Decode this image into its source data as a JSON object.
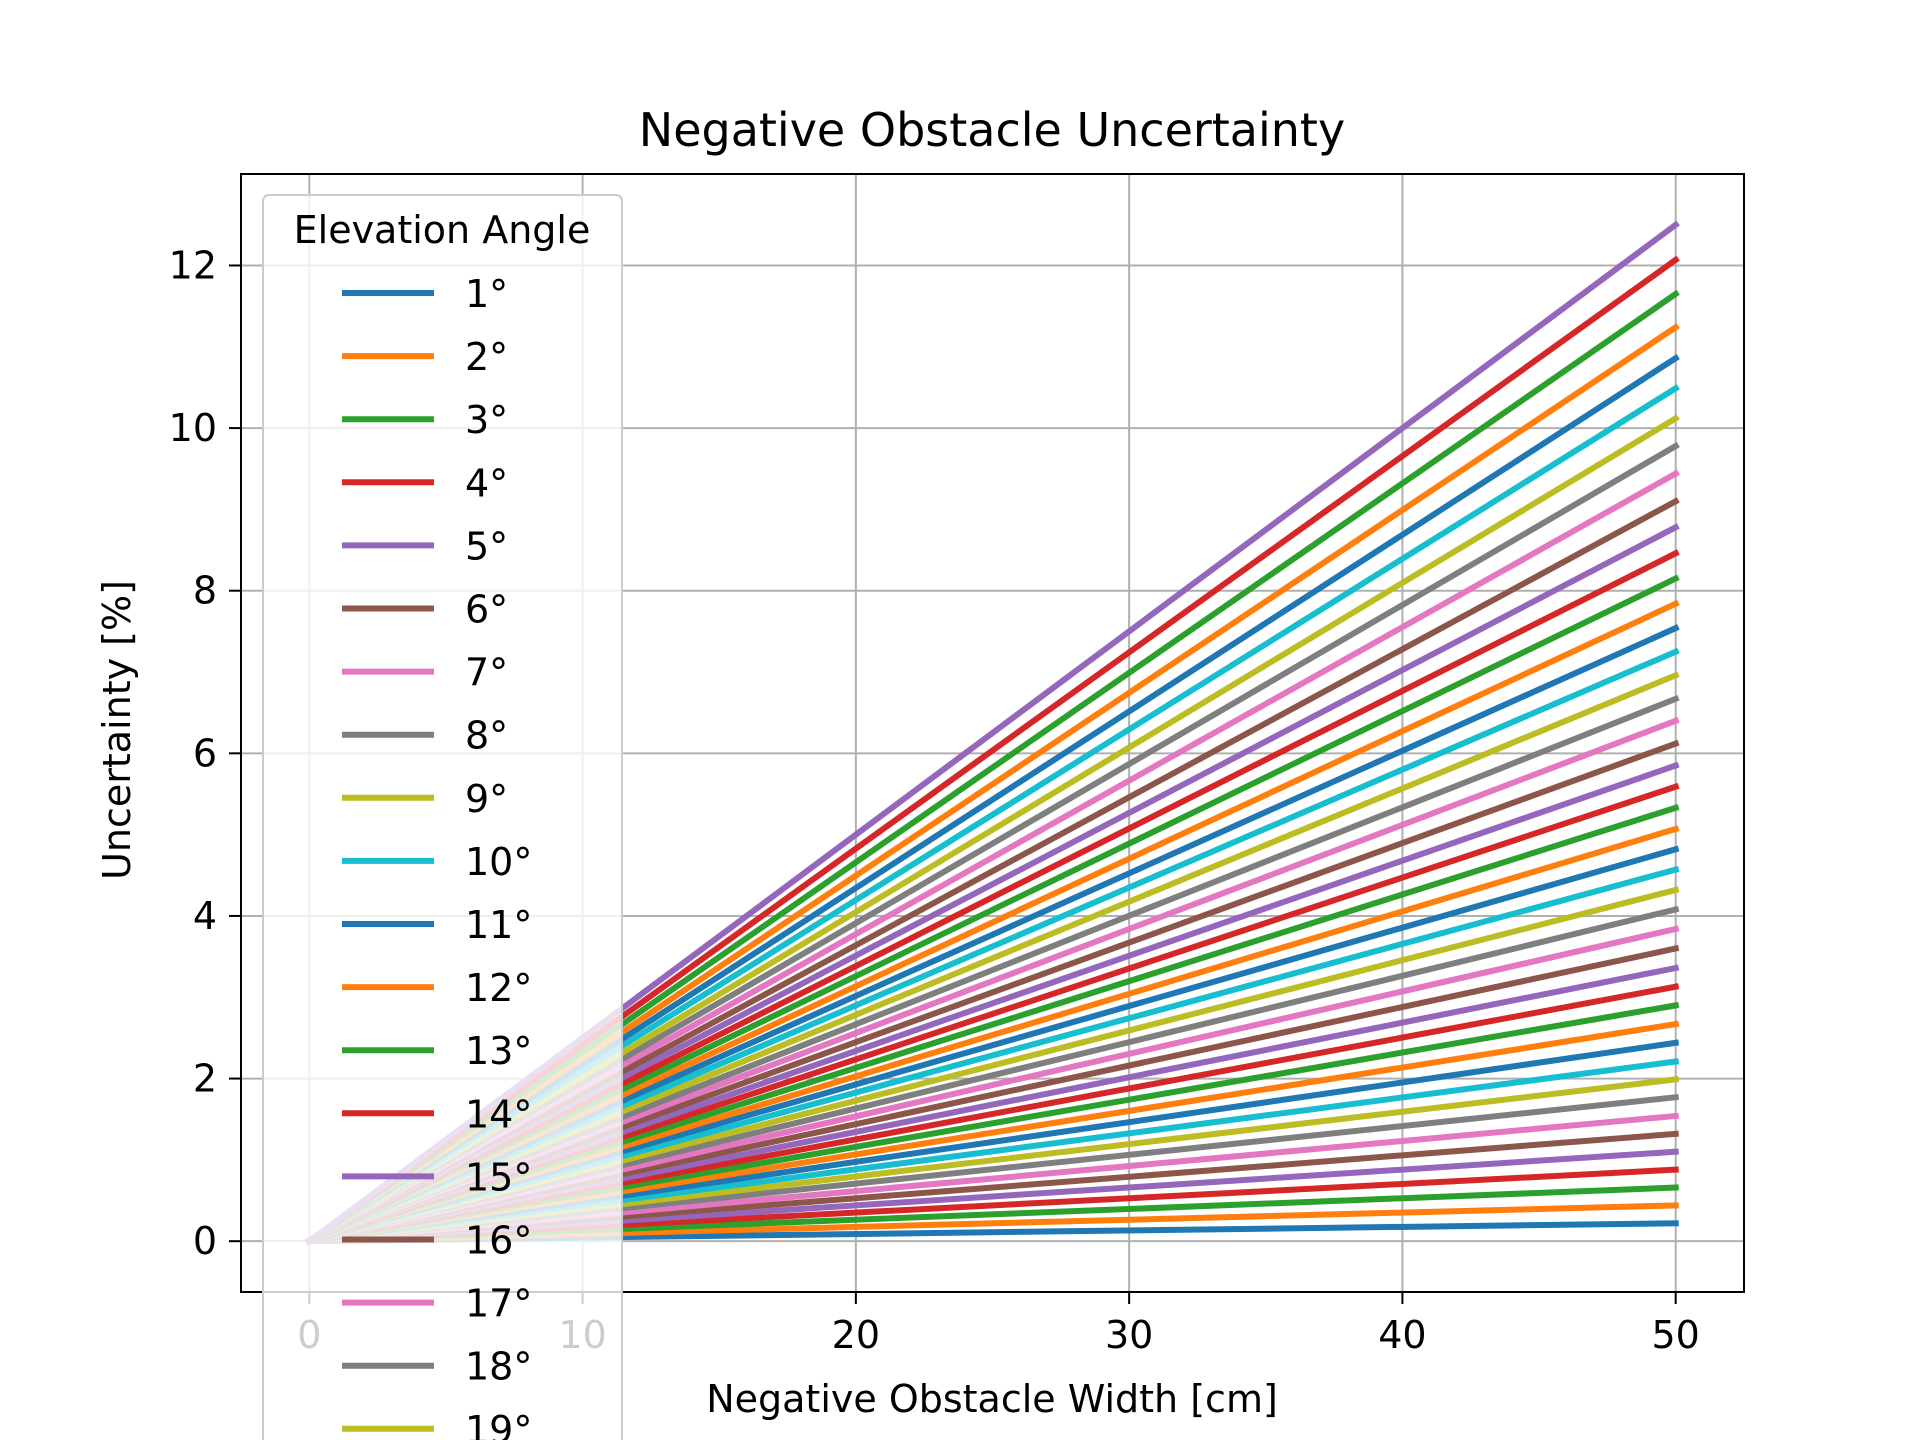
{
  "chart_data": {
    "type": "line",
    "title": "Negative Obstacle Uncertainty",
    "xlabel": "Negative Obstacle Width [cm]",
    "ylabel": "Uncertainty [%]",
    "xlim": [
      -2.5,
      52.5
    ],
    "ylim": [
      -0.625,
      13.125
    ],
    "xticks": [
      0,
      10,
      20,
      30,
      40,
      50
    ],
    "yticks": [
      0,
      2,
      4,
      6,
      8,
      10,
      12
    ],
    "grid": true,
    "legend": {
      "title": "Elevation Angle",
      "placement": "top-left"
    },
    "x": [
      0,
      50
    ],
    "series": [
      {
        "name": "1°",
        "values": [
          0,
          0.22
        ]
      },
      {
        "name": "2°",
        "values": [
          0,
          0.44
        ]
      },
      {
        "name": "3°",
        "values": [
          0,
          0.66
        ]
      },
      {
        "name": "4°",
        "values": [
          0,
          0.88
        ]
      },
      {
        "name": "5°",
        "values": [
          0,
          1.1
        ]
      },
      {
        "name": "6°",
        "values": [
          0,
          1.32
        ]
      },
      {
        "name": "7°",
        "values": [
          0,
          1.54
        ]
      },
      {
        "name": "8°",
        "values": [
          0,
          1.77
        ]
      },
      {
        "name": "9°",
        "values": [
          0,
          1.99
        ]
      },
      {
        "name": "10°",
        "values": [
          0,
          2.21
        ]
      },
      {
        "name": "11°",
        "values": [
          0,
          2.44
        ]
      },
      {
        "name": "12°",
        "values": [
          0,
          2.67
        ]
      },
      {
        "name": "13°",
        "values": [
          0,
          2.9
        ]
      },
      {
        "name": "14°",
        "values": [
          0,
          3.13
        ]
      },
      {
        "name": "15°",
        "values": [
          0,
          3.36
        ]
      },
      {
        "name": "16°",
        "values": [
          0,
          3.6
        ]
      },
      {
        "name": "17°",
        "values": [
          0,
          3.84
        ]
      },
      {
        "name": "18°",
        "values": [
          0,
          4.08
        ]
      },
      {
        "name": "19°",
        "values": [
          0,
          4.32
        ]
      },
      {
        "name": "",
        "values": [
          0,
          4.57
        ]
      },
      {
        "name": "",
        "values": [
          0,
          4.82
        ]
      },
      {
        "name": "",
        "values": [
          0,
          5.07
        ]
      },
      {
        "name": "",
        "values": [
          0,
          5.33
        ]
      },
      {
        "name": "",
        "values": [
          0,
          5.59
        ]
      },
      {
        "name": "",
        "values": [
          0,
          5.85
        ]
      },
      {
        "name": "",
        "values": [
          0,
          6.12
        ]
      },
      {
        "name": "",
        "values": [
          0,
          6.4
        ]
      },
      {
        "name": "",
        "values": [
          0,
          6.67
        ]
      },
      {
        "name": "",
        "values": [
          0,
          6.96
        ]
      },
      {
        "name": "",
        "values": [
          0,
          7.25
        ]
      },
      {
        "name": "",
        "values": [
          0,
          7.54
        ]
      },
      {
        "name": "",
        "values": [
          0,
          7.84
        ]
      },
      {
        "name": "",
        "values": [
          0,
          8.15
        ]
      },
      {
        "name": "",
        "values": [
          0,
          8.46
        ]
      },
      {
        "name": "",
        "values": [
          0,
          8.78
        ]
      },
      {
        "name": "",
        "values": [
          0,
          9.1
        ]
      },
      {
        "name": "",
        "values": [
          0,
          9.44
        ]
      },
      {
        "name": "",
        "values": [
          0,
          9.78
        ]
      },
      {
        "name": "",
        "values": [
          0,
          10.12
        ]
      },
      {
        "name": "",
        "values": [
          0,
          10.49
        ]
      },
      {
        "name": "",
        "values": [
          0,
          10.86
        ]
      },
      {
        "name": "",
        "values": [
          0,
          11.24
        ]
      },
      {
        "name": "",
        "values": [
          0,
          11.65
        ]
      },
      {
        "name": "",
        "values": [
          0,
          12.07
        ]
      },
      {
        "name": "",
        "values": [
          0,
          12.5
        ]
      }
    ],
    "colors": [
      "#1f77b4",
      "#ff7f0e",
      "#2ca02c",
      "#d62728",
      "#9467bd",
      "#8c564b",
      "#e377c2",
      "#7f7f7f",
      "#bcbd22",
      "#17becf"
    ]
  }
}
